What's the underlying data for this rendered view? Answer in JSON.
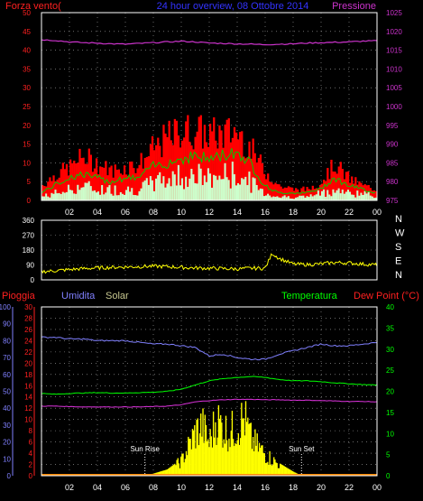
{
  "chart_data": [
    {
      "type": "line",
      "title": "24 hour overview, 08 Ottobre 2014",
      "left_axis_title": "Forza vento(",
      "right_axis_title": "Pressione",
      "x_ticks": [
        "02",
        "04",
        "06",
        "08",
        "10",
        "12",
        "14",
        "16",
        "18",
        "20",
        "22",
        "00"
      ],
      "y_left_ticks": [
        "0",
        "5",
        "10",
        "15",
        "20",
        "25",
        "30",
        "35",
        "40",
        "45",
        "50"
      ],
      "y_right_ticks": [
        "975",
        "980",
        "985",
        "990",
        "995",
        "1000",
        "1005",
        "1010",
        "1015",
        "1020",
        "1025"
      ],
      "y_left_range": [
        0,
        50
      ],
      "y_right_range": [
        975,
        1025
      ],
      "grid": true,
      "colors": {
        "gust": "#ff0000",
        "avg": "#00cc00",
        "min_wind": "#ccffcc",
        "pressure": "#cc33cc",
        "title": "#3333ff",
        "left_axis": "#ff2020",
        "right_axis": "#cc33cc"
      },
      "series": [
        {
          "role": "pressure",
          "axis": "right",
          "x": [
            0,
            1,
            2,
            3,
            4,
            5,
            6,
            7,
            8,
            9,
            10,
            11,
            12,
            13,
            14,
            15,
            16,
            17,
            18,
            19,
            20,
            21,
            22,
            23,
            24
          ],
          "values": [
            1017.8,
            1017.6,
            1017.2,
            1017.0,
            1016.9,
            1016.7,
            1016.6,
            1016.8,
            1017.0,
            1017.2,
            1017.4,
            1017.2,
            1016.9,
            1016.8,
            1016.7,
            1016.6,
            1016.5,
            1016.6,
            1016.7,
            1016.9,
            1017.0,
            1017.1,
            1017.2,
            1017.4,
            1017.5
          ]
        },
        {
          "role": "gust",
          "axis": "left",
          "x": [
            0,
            1,
            2,
            3,
            4,
            5,
            6,
            7,
            8,
            9,
            10,
            11,
            12,
            13,
            14,
            15,
            16,
            17,
            18,
            19,
            20,
            21,
            22,
            23,
            24
          ],
          "values": [
            4,
            7,
            9,
            12,
            10,
            8,
            9,
            10,
            14,
            17,
            19,
            19,
            18,
            18,
            19,
            14,
            8,
            4,
            3,
            3,
            5,
            10,
            6,
            4,
            3
          ]
        },
        {
          "role": "avg",
          "axis": "left",
          "x": [
            0,
            1,
            2,
            3,
            4,
            5,
            6,
            7,
            8,
            9,
            10,
            11,
            12,
            13,
            14,
            15,
            16,
            17,
            18,
            19,
            20,
            21,
            22,
            23,
            24
          ],
          "values": [
            2,
            4,
            6,
            7,
            6,
            5,
            6,
            6,
            9,
            10,
            11,
            12,
            11,
            12,
            13,
            10,
            4,
            2,
            2,
            2,
            3,
            6,
            4,
            3,
            2
          ]
        },
        {
          "role": "min_wind",
          "axis": "left",
          "x": [
            0,
            1,
            2,
            3,
            4,
            5,
            6,
            7,
            8,
            9,
            10,
            11,
            12,
            13,
            14,
            15,
            16,
            17,
            18,
            19,
            20,
            21,
            22,
            23,
            24
          ],
          "values": [
            1,
            2,
            3,
            4,
            3,
            3,
            3,
            3,
            5,
            6,
            7,
            7,
            6,
            7,
            7,
            5,
            2,
            1,
            1,
            1,
            2,
            3,
            2,
            2,
            1
          ]
        }
      ]
    },
    {
      "type": "line",
      "y_ticks": [
        "0",
        "90",
        "180",
        "270",
        "360"
      ],
      "y_range": [
        0,
        360
      ],
      "direction_labels": [
        "N",
        "W",
        "S",
        "E",
        "N"
      ],
      "grid": true,
      "colors": {
        "direction": "#ffff00",
        "axis": "#ffffff"
      },
      "series": [
        {
          "role": "direction",
          "x": [
            0,
            1,
            2,
            3,
            4,
            5,
            6,
            7,
            8,
            9,
            10,
            11,
            12,
            13,
            14,
            15,
            16,
            16.5,
            17,
            18,
            19,
            20,
            21,
            22,
            23,
            24
          ],
          "values": [
            50,
            55,
            62,
            68,
            72,
            75,
            78,
            80,
            82,
            80,
            75,
            72,
            70,
            68,
            66,
            70,
            70,
            160,
            130,
            95,
            92,
            96,
            105,
            102,
            95,
            90
          ]
        }
      ]
    },
    {
      "type": "line",
      "legend": [
        "Pioggia",
        "Umidita",
        "Solar",
        "Temperatura",
        "Dew Point (°C)"
      ],
      "legend_colors": [
        "#ff2020",
        "#8080ff",
        "#c8c890",
        "#00ff00",
        "#ff2020"
      ],
      "y_rain_ticks": [
        "0",
        "2",
        "4",
        "6",
        "8",
        "10",
        "12",
        "14",
        "16",
        "18",
        "20",
        "22",
        "24",
        "26",
        "28",
        "30"
      ],
      "y_humidity_ticks": [
        "0",
        "10",
        "20",
        "30",
        "40",
        "50",
        "60",
        "70",
        "80",
        "90",
        "100"
      ],
      "y_temp_ticks": [
        "0",
        "5",
        "10",
        "15",
        "20",
        "25",
        "30",
        "35",
        "40"
      ],
      "x_ticks": [
        "02",
        "04",
        "06",
        "08",
        "10",
        "12",
        "14",
        "16",
        "18",
        "20",
        "22",
        "00"
      ],
      "annotations": [
        "Sun Rise",
        "Sun Set"
      ],
      "sunrise_hour": 7.4,
      "sunset_hour": 18.6,
      "grid": true,
      "series": [
        {
          "role": "humidity",
          "axis": "humidity",
          "x": [
            0,
            1,
            2,
            3,
            4,
            5,
            6,
            7,
            8,
            9,
            10,
            11,
            12,
            13,
            14,
            15,
            16,
            17,
            18,
            19,
            20,
            21,
            22,
            23,
            24
          ],
          "values": [
            82,
            82,
            81,
            81,
            80,
            80,
            80,
            79,
            78,
            78,
            77,
            76,
            71,
            72,
            70,
            69,
            69,
            72,
            74,
            76,
            78,
            77,
            77,
            78,
            79
          ]
        },
        {
          "role": "temperature",
          "axis": "temp",
          "x": [
            0,
            1,
            2,
            3,
            4,
            5,
            6,
            7,
            8,
            9,
            10,
            11,
            12,
            13,
            14,
            15,
            16,
            17,
            18,
            19,
            20,
            21,
            22,
            23,
            24
          ],
          "values": [
            19.5,
            19.3,
            19.5,
            19.6,
            19.7,
            19.6,
            19.6,
            19.7,
            19.8,
            20.0,
            20.5,
            21.5,
            22.5,
            23.0,
            23.3,
            23.5,
            23.3,
            22.8,
            22.5,
            22.5,
            22.3,
            22.0,
            21.8,
            21.6,
            21.5
          ]
        },
        {
          "role": "dew_point",
          "axis": "temp",
          "x": [
            0,
            1,
            2,
            3,
            4,
            5,
            6,
            7,
            8,
            9,
            10,
            11,
            12,
            13,
            14,
            15,
            16,
            17,
            18,
            19,
            20,
            21,
            22,
            23,
            24
          ],
          "values": [
            16.5,
            16.5,
            16.4,
            16.3,
            16.3,
            16.3,
            16.3,
            16.3,
            16.4,
            16.5,
            16.8,
            17.5,
            17.8,
            18.0,
            18.1,
            18.1,
            18.0,
            18.0,
            17.9,
            17.9,
            17.8,
            17.7,
            17.6,
            17.6,
            17.5
          ]
        },
        {
          "role": "solar",
          "axis": "temp",
          "x": [
            7.4,
            8,
            9,
            10,
            10.5,
            11,
            11.5,
            12,
            12.5,
            13,
            13.5,
            14,
            14.5,
            15,
            15.5,
            16,
            17,
            18,
            18.6
          ],
          "values": [
            0,
            0.5,
            1.5,
            4,
            8,
            12,
            14,
            9,
            16,
            13,
            12,
            14,
            16,
            10,
            8,
            6,
            3,
            1,
            0
          ]
        },
        {
          "role": "rain",
          "axis": "rain",
          "x": [
            0,
            24
          ],
          "values": [
            0,
            0
          ]
        }
      ]
    }
  ],
  "colors": {
    "grid": "#aaaaaa",
    "frame": "#ffffff",
    "tick_text": "#ffffff"
  }
}
